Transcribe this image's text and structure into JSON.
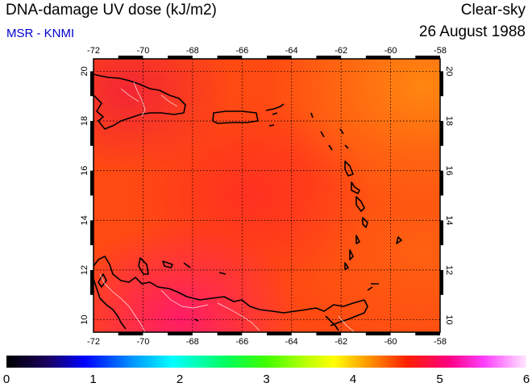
{
  "header": {
    "title": "DNA-damage UV dose (kJ/m2)",
    "subtitle": "MSR - KNMI",
    "sky_label": "Clear-sky",
    "date": "26 August 1988"
  },
  "colors": {
    "subtitle": "#0000cc",
    "field_base": "#ff3a10",
    "field_hot": "#ff2060",
    "field_warm": "#ff7a10",
    "coast": "#000000",
    "borders": "#ffffff"
  },
  "map": {
    "lon_range": [
      -72,
      -58
    ],
    "lat_range": [
      9.5,
      20.5
    ],
    "lon_ticks": [
      -72,
      -70,
      -68,
      -66,
      -64,
      -62,
      -60,
      -58
    ],
    "lat_ticks": [
      10,
      12,
      14,
      16,
      18,
      20
    ],
    "lon_tick_labels": [
      "-72",
      "-70",
      "-68",
      "-66",
      "-64",
      "-62",
      "-60",
      "-58"
    ],
    "lat_tick_labels": [
      "10",
      "12",
      "14",
      "16",
      "18",
      "20"
    ],
    "gridlines": true
  },
  "colorbar": {
    "min": 0,
    "max": 6,
    "labels": [
      "0",
      "1",
      "2",
      "3",
      "4",
      "5",
      "6"
    ]
  }
}
